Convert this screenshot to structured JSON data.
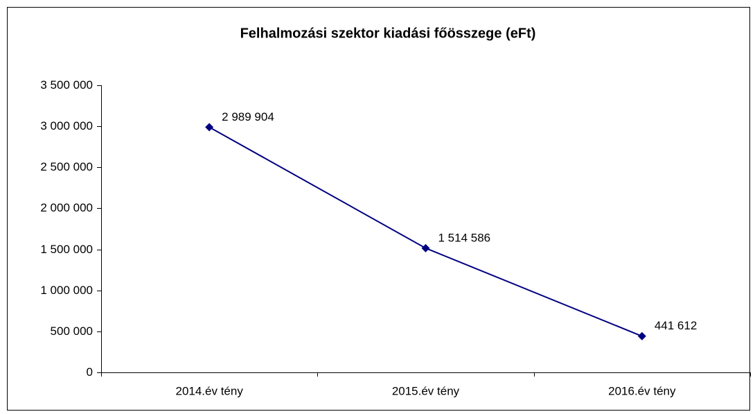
{
  "chart_data": {
    "type": "line",
    "title": "Felhalmozási szektor kiadási főösszege (eFt)",
    "categories": [
      "2014.év tény",
      "2015.év tény",
      "2016.év tény"
    ],
    "series": [
      {
        "name": "Felhalmozási szektor kiadási főösszege",
        "color": "#000080",
        "values": [
          2989904,
          1514586,
          441612
        ],
        "value_labels": [
          "2 989 904",
          "1 514 586",
          "441 612"
        ]
      }
    ],
    "ylim": [
      0,
      3500000
    ],
    "yticks": [
      0,
      {
        "value": 500000,
        "label": "500 000"
      },
      {
        "value": 1000000,
        "label": "1 000 000"
      },
      {
        "value": 1500000,
        "label": "1 500 000"
      },
      {
        "value": 2000000,
        "label": "2 000 000"
      },
      {
        "value": 2500000,
        "label": "2 500 000"
      },
      {
        "value": 3000000,
        "label": "3 000 000"
      },
      {
        "value": 3500000,
        "label": "3 500 000"
      }
    ],
    "grid": false
  }
}
